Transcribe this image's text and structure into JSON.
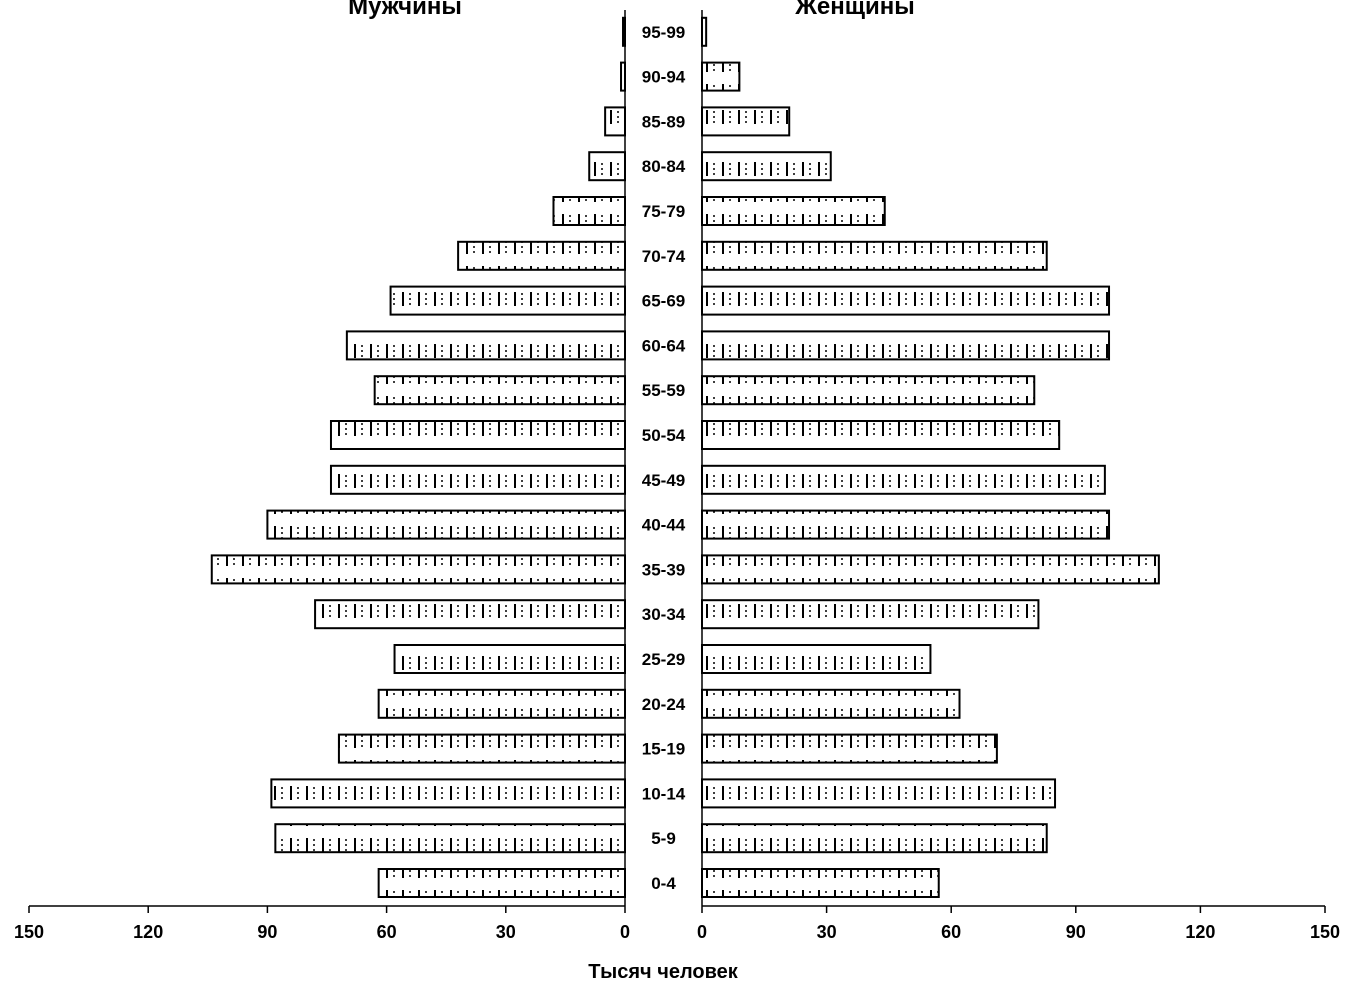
{
  "chart_data": {
    "type": "bar",
    "orientation": "horizontal",
    "subtype": "population-pyramid",
    "xlabel": "Тысяч человек",
    "left_title": "Мужчины",
    "right_title": "Женщины",
    "categories": [
      "0-4",
      "5-9",
      "10-14",
      "15-19",
      "20-24",
      "25-29",
      "30-34",
      "35-39",
      "40-44",
      "45-49",
      "50-54",
      "55-59",
      "60-64",
      "65-69",
      "70-74",
      "75-79",
      "80-84",
      "85-89",
      "90-94",
      "95-99"
    ],
    "series": [
      {
        "name": "Мужчины",
        "side": "left",
        "values": [
          62,
          88,
          89,
          72,
          62,
          58,
          78,
          104,
          90,
          74,
          74,
          63,
          70,
          59,
          42,
          18,
          9,
          5,
          1,
          0.5
        ]
      },
      {
        "name": "Женщины",
        "side": "right",
        "values": [
          57,
          83,
          85,
          71,
          62,
          55,
          81,
          110,
          98,
          97,
          86,
          80,
          98,
          98,
          83,
          44,
          31,
          21,
          9,
          1
        ]
      }
    ],
    "left_axis": {
      "ticks": [
        "150",
        "120",
        "90",
        "60",
        "30",
        "0"
      ],
      "range": [
        0,
        150
      ]
    },
    "right_axis": {
      "ticks": [
        "0",
        "30",
        "60",
        "90",
        "120",
        "150"
      ],
      "range": [
        0,
        150
      ]
    },
    "grid": false,
    "legend": "none",
    "bar_pattern": "dotted-dash",
    "bar_fill": "#ffffff",
    "bar_stroke": "#000000"
  }
}
